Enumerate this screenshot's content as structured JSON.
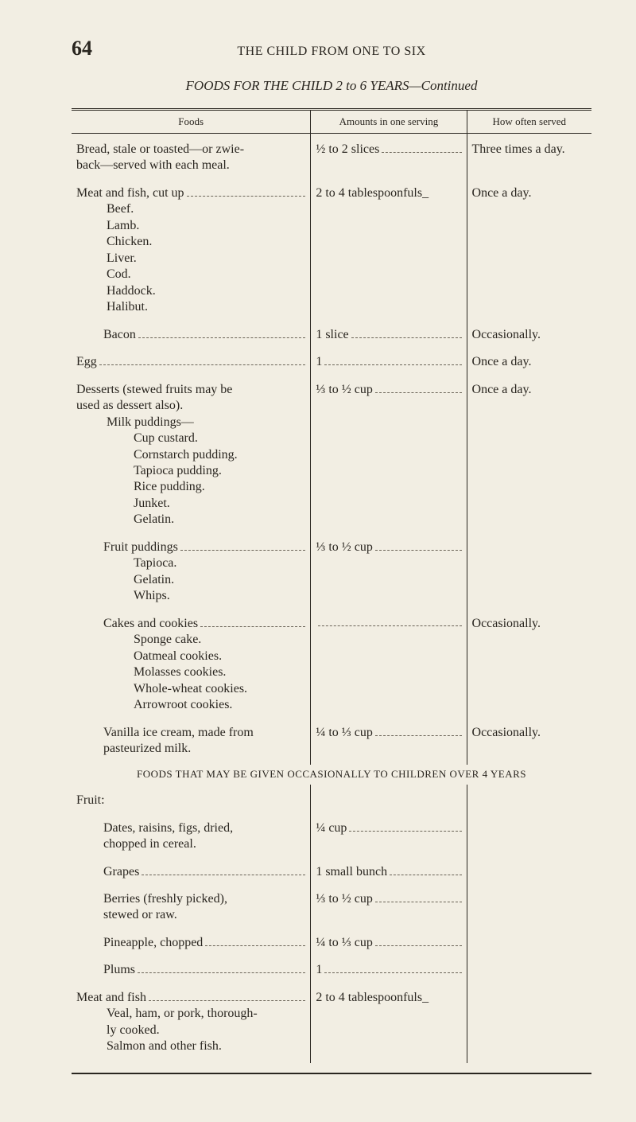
{
  "page_number": "64",
  "running_title": "THE CHILD FROM ONE TO SIX",
  "table_title": "FOODS FOR THE CHILD 2 to 6 YEARS—Continued",
  "headers": {
    "foods": "Foods",
    "amounts": "Amounts in one serving",
    "how_often": "How often served"
  },
  "rows": [
    {
      "food": "Bread, stale or toasted—or zwie-\nback—served with each meal.",
      "food_leader": false,
      "amount": "½ to 2 slices",
      "amount_leader": true,
      "freq": "Three times a day.",
      "freq_leader": false
    },
    {
      "food": "Meat and fish, cut up",
      "food_leader": true,
      "amount": "2 to 4 tablespoonfuls_",
      "amount_leader": false,
      "freq": "Once a day.",
      "freq_leader": false,
      "subs": [
        "Beef.",
        "Lamb.",
        "Chicken.",
        "Liver.",
        "Cod.",
        "Haddock.",
        "Halibut."
      ]
    },
    {
      "food_indent": 1,
      "food": "Bacon",
      "food_leader": true,
      "amount": "1 slice",
      "amount_leader": true,
      "freq": "Occasionally.",
      "freq_leader": false
    },
    {
      "food": "Egg",
      "food_leader": true,
      "amount": "1",
      "amount_leader": true,
      "freq": "Once a day.",
      "freq_leader": false
    },
    {
      "food": "Desserts (stewed fruits may be\nused as dessert also).",
      "food_leader": false,
      "amount": "⅓ to ½ cup",
      "amount_leader": true,
      "freq": "Once a day.",
      "freq_leader": false,
      "subs_label": "Milk puddings—",
      "subs2": [
        "Cup custard.",
        "Cornstarch pudding.",
        "Tapioca pudding.",
        "Rice pudding.",
        "Junket.",
        "Gelatin."
      ]
    },
    {
      "food_indent": 1,
      "food": "Fruit puddings",
      "food_leader": true,
      "amount": "⅓ to ½ cup",
      "amount_leader": true,
      "freq": "",
      "freq_leader": false,
      "subs2": [
        "Tapioca.",
        "Gelatin.",
        "Whips."
      ]
    },
    {
      "food_indent": 1,
      "food": "Cakes and cookies",
      "food_leader": true,
      "amount": "",
      "amount_leader": true,
      "freq": "Occasionally.",
      "freq_leader": false,
      "subs2": [
        "Sponge cake.",
        "Oatmeal cookies.",
        "Molasses cookies.",
        "Whole-wheat cookies.",
        "Arrowroot cookies."
      ]
    },
    {
      "food_indent": 1,
      "food": "Vanilla ice cream, made from\npasteurized milk.",
      "food_leader": false,
      "amount": "¼ to ⅓ cup",
      "amount_leader": true,
      "freq": "Occasionally.",
      "freq_leader": false
    }
  ],
  "section2_title": "FOODS THAT MAY BE GIVEN OCCASIONALLY TO CHILDREN OVER 4 YEARS",
  "rows2": [
    {
      "food": "Fruit:",
      "food_leader": false,
      "amount": "",
      "freq": ""
    },
    {
      "food_indent": 1,
      "food": "Dates, raisins, figs, dried,\nchopped in cereal.",
      "food_leader": false,
      "amount": "¼ cup",
      "amount_leader": true,
      "freq": ""
    },
    {
      "food_indent": 1,
      "food": "Grapes",
      "food_leader": true,
      "amount": "1 small bunch",
      "amount_leader": true,
      "freq": ""
    },
    {
      "food_indent": 1,
      "food": "Berries (freshly picked),\nstewed or raw.",
      "food_leader": false,
      "amount": "⅓ to ½ cup",
      "amount_leader": true,
      "freq": ""
    },
    {
      "food_indent": 1,
      "food": "Pineapple, chopped",
      "food_leader": true,
      "amount": "¼ to ⅓ cup",
      "amount_leader": true,
      "freq": ""
    },
    {
      "food_indent": 1,
      "food": "Plums",
      "food_leader": true,
      "amount": "1",
      "amount_leader": true,
      "freq": ""
    },
    {
      "food": "Meat and fish",
      "food_leader": true,
      "amount": "2 to 4 tablespoonfuls_",
      "amount_leader": false,
      "freq": "",
      "subs": [
        "Veal, ham, or pork, thorough-\nly cooked.",
        "Salmon and other fish."
      ]
    }
  ]
}
